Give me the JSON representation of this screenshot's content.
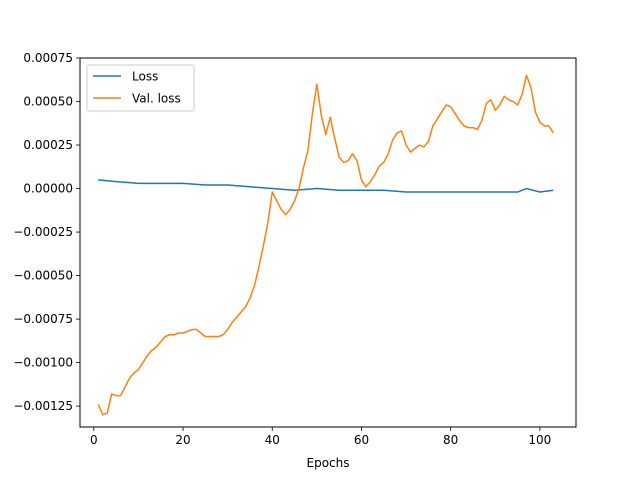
{
  "chart_data": {
    "type": "line",
    "title": "",
    "xlabel": "Epochs",
    "ylabel": "",
    "xlim": [
      -3.1,
      108.1
    ],
    "ylim": [
      -0.00137,
      0.00075
    ],
    "x_ticks": [
      0,
      20,
      40,
      60,
      80,
      100
    ],
    "y_ticks": [
      -0.00125,
      -0.001,
      -0.00075,
      -0.0005,
      -0.00025,
      0,
      0.00025,
      0.0005,
      0.00075
    ],
    "x_tick_labels": [
      "0",
      "20",
      "40",
      "60",
      "80",
      "100"
    ],
    "y_tick_labels": [
      "−0.00125",
      "−0.00100",
      "−0.00075",
      "−0.00050",
      "−0.00025",
      "0.00000",
      "0.00025",
      "0.00050",
      "0.00075"
    ],
    "grid": false,
    "legend_position": "upper-left",
    "series": [
      {
        "name": "Loss",
        "color": "#1f77b4",
        "x": [
          1,
          5,
          10,
          15,
          20,
          25,
          30,
          35,
          40,
          45,
          50,
          55,
          60,
          65,
          70,
          75,
          80,
          85,
          90,
          95,
          97,
          100,
          103
        ],
        "y": [
          5e-05,
          4e-05,
          3e-05,
          3e-05,
          3e-05,
          2e-05,
          2e-05,
          1e-05,
          0.0,
          -1e-05,
          0.0,
          -1e-05,
          -1e-05,
          -1e-05,
          -2e-05,
          -2e-05,
          -2e-05,
          -2e-05,
          -2e-05,
          -2e-05,
          0.0,
          -2e-05,
          -1e-05
        ]
      },
      {
        "name": "Val. loss",
        "color": "#ff7f0e",
        "x": [
          1,
          2,
          3,
          4,
          5,
          6,
          7,
          8,
          9,
          10,
          11,
          12,
          13,
          14,
          15,
          16,
          17,
          18,
          19,
          20,
          21,
          22,
          23,
          24,
          25,
          26,
          27,
          28,
          29,
          30,
          31,
          32,
          33,
          34,
          35,
          36,
          37,
          38,
          39,
          40,
          41,
          42,
          43,
          44,
          45,
          46,
          47,
          48,
          49,
          50,
          51,
          52,
          53,
          54,
          55,
          56,
          57,
          58,
          59,
          60,
          61,
          62,
          63,
          64,
          65,
          66,
          67,
          68,
          69,
          70,
          71,
          72,
          73,
          74,
          75,
          76,
          77,
          78,
          79,
          80,
          81,
          82,
          83,
          84,
          85,
          86,
          87,
          88,
          89,
          90,
          91,
          92,
          93,
          94,
          95,
          96,
          97,
          98,
          99,
          100,
          101,
          102,
          103
        ],
        "y": [
          -0.00124,
          -0.0013,
          -0.00129,
          -0.00118,
          -0.00119,
          -0.00119,
          -0.00114,
          -0.00109,
          -0.00106,
          -0.00104,
          -0.001,
          -0.00096,
          -0.00093,
          -0.00091,
          -0.00088,
          -0.00085,
          -0.00084,
          -0.00084,
          -0.00083,
          -0.00083,
          -0.00082,
          -0.00081,
          -0.00081,
          -0.00083,
          -0.00085,
          -0.00085,
          -0.00085,
          -0.00085,
          -0.00084,
          -0.00081,
          -0.00077,
          -0.00074,
          -0.00071,
          -0.00068,
          -0.00063,
          -0.00056,
          -0.00045,
          -0.00033,
          -0.0002,
          -2e-05,
          -7e-05,
          -0.00012,
          -0.00015,
          -0.00012,
          -7e-05,
          0.0,
          0.00012,
          0.00022,
          0.00043,
          0.0006,
          0.00042,
          0.00031,
          0.00041,
          0.00029,
          0.00018,
          0.00015,
          0.00016,
          0.0002,
          0.00016,
          5e-05,
          1e-05,
          4e-05,
          8e-05,
          0.00013,
          0.00015,
          0.0002,
          0.00028,
          0.00032,
          0.00033,
          0.00025,
          0.00021,
          0.00023,
          0.00025,
          0.00024,
          0.00027,
          0.00036,
          0.0004,
          0.00044,
          0.00048,
          0.00047,
          0.00043,
          0.00039,
          0.00036,
          0.00035,
          0.00035,
          0.00034,
          0.00039,
          0.00049,
          0.00051,
          0.00045,
          0.00048,
          0.00053,
          0.00051,
          0.0005,
          0.00048,
          0.00054,
          0.00065,
          0.00058,
          0.00044,
          0.00038,
          0.00036,
          0.00036,
          0.00032
        ]
      }
    ]
  }
}
